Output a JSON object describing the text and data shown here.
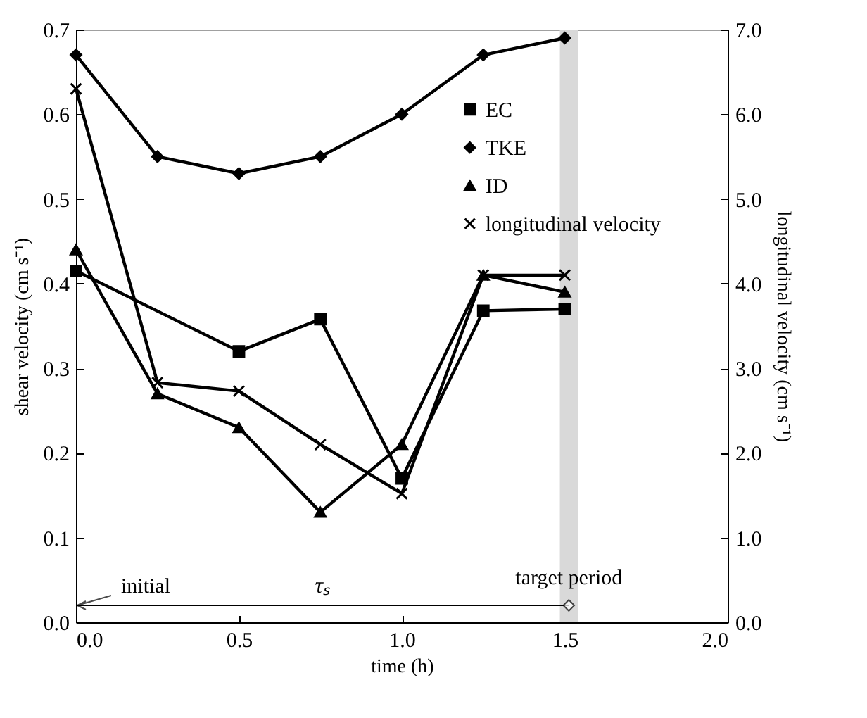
{
  "chart_data": {
    "type": "line",
    "xlabel": "time (h)",
    "ylabel": "shear velocity (cm s⁻¹)",
    "y2label": "longitudinal velocity (cm s⁻¹)",
    "x": [
      0,
      0.25,
      0.5,
      0.75,
      1.0,
      1.25,
      1.5
    ],
    "series": [
      {
        "name": "EC",
        "color": "#000000",
        "marker": "square",
        "x": [
          0,
          0.5,
          0.75,
          1.0,
          1.25,
          1.5
        ],
        "values": [
          0.415,
          0.32,
          0.358,
          0.17,
          0.368,
          0.37
        ]
      },
      {
        "name": "TKE",
        "color": "#000000",
        "marker": "diamond",
        "values": [
          0.67,
          0.55,
          0.53,
          0.55,
          0.6,
          0.67,
          0.69
        ]
      },
      {
        "name": "ID",
        "color": "#000000",
        "marker": "triangle",
        "values": [
          0.44,
          0.27,
          0.23,
          0.13,
          0.21,
          0.41,
          0.39
        ]
      },
      {
        "name": "longitudinal velocity",
        "color": "#000000",
        "marker": "cross",
        "axis": "y2",
        "values": [
          6.3,
          2.83,
          2.73,
          2.1,
          1.52,
          4.1,
          4.1
        ]
      }
    ],
    "xlim": [
      0,
      2
    ],
    "xticks": [
      {
        "value": 0,
        "label": "0.0"
      },
      {
        "value": 0.5,
        "label": "0.5"
      },
      {
        "value": 1,
        "label": "1.0"
      },
      {
        "value": 1.5,
        "label": "1.5"
      },
      {
        "value": 2,
        "label": "2.0"
      }
    ],
    "ylim": [
      0,
      0.7
    ],
    "yticks": [
      {
        "value": 0,
        "label": "0.0"
      },
      {
        "value": 0.1,
        "label": "0.1"
      },
      {
        "value": 0.2,
        "label": "0.2"
      },
      {
        "value": 0.3,
        "label": "0.3"
      },
      {
        "value": 0.4,
        "label": "0.4"
      },
      {
        "value": 0.5,
        "label": "0.5"
      },
      {
        "value": 0.6,
        "label": "0.6"
      },
      {
        "value": 0.7,
        "label": "0.7"
      }
    ],
    "y2lim": [
      0,
      7
    ],
    "y2ticks": [
      {
        "value": 0,
        "label": "0.0"
      },
      {
        "value": 1,
        "label": "1.0"
      },
      {
        "value": 2,
        "label": "2.0"
      },
      {
        "value": 3,
        "label": "3.0"
      },
      {
        "value": 4,
        "label": "4.0"
      },
      {
        "value": 5,
        "label": "5.0"
      },
      {
        "value": 6,
        "label": "6.0"
      },
      {
        "value": 7,
        "label": "7.0"
      }
    ],
    "bands": [
      {
        "axis": "x",
        "from": 1.485,
        "to": 1.54,
        "label": "target period",
        "color": "#d9d9d9"
      }
    ],
    "annotations": [
      "initial",
      "τₛ"
    ],
    "legend": "top right",
    "grid": false,
    "line_style": "solid"
  }
}
